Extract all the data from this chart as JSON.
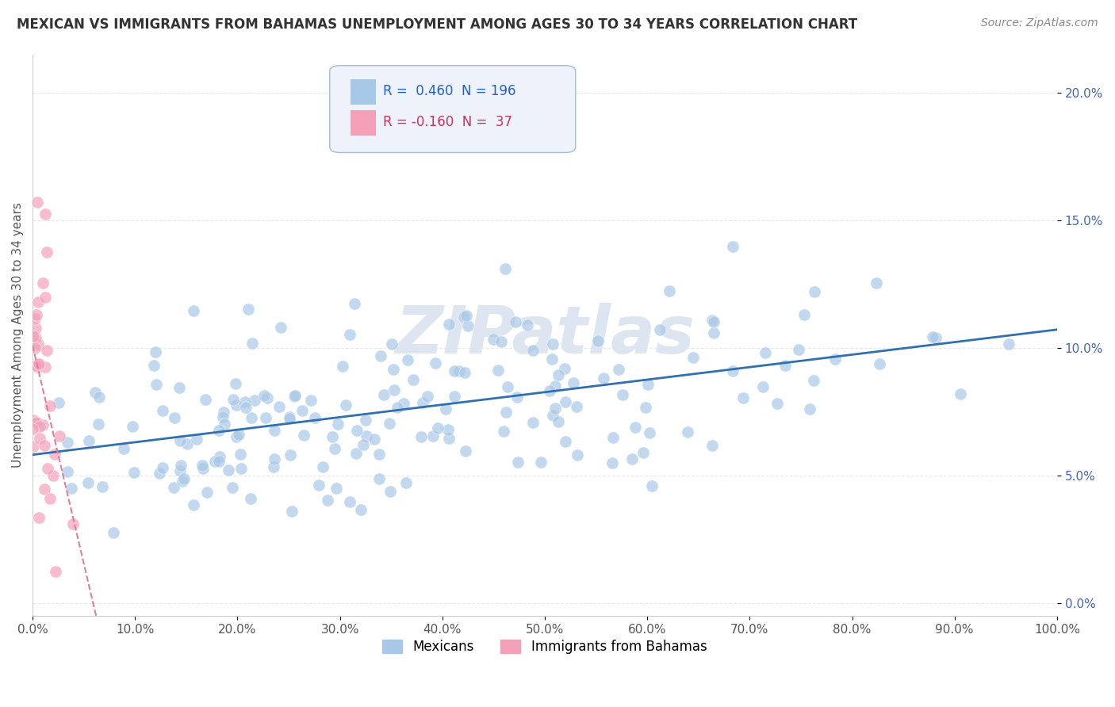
{
  "title": "MEXICAN VS IMMIGRANTS FROM BAHAMAS UNEMPLOYMENT AMONG AGES 30 TO 34 YEARS CORRELATION CHART",
  "source": "Source: ZipAtlas.com",
  "ylabel": "Unemployment Among Ages 30 to 34 years",
  "xlim": [
    0,
    1.0
  ],
  "ylim": [
    -0.005,
    0.215
  ],
  "mexican_R": 0.46,
  "mexican_N": 196,
  "bahamas_R": -0.16,
  "bahamas_N": 37,
  "mexican_color": "#a8c8e8",
  "bahamas_color": "#f4a0b8",
  "trend_mexican_color": "#3070b0",
  "trend_bahamas_color": "#e08098",
  "watermark": "ZIPatlas",
  "watermark_color": "#dde6f0",
  "legend_box_color": "#eef2fb",
  "legend_edge_color": "#aabbd0",
  "mexican_seed": 42,
  "bahamas_seed": 7,
  "background_color": "#ffffff",
  "grid_color": "#e8e8e8",
  "title_color": "#333333",
  "source_color": "#888888",
  "tick_color": "#4466aa",
  "axis_label_color": "#555555"
}
